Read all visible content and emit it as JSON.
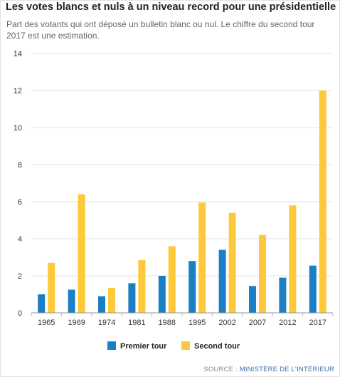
{
  "chart_data": {
    "type": "bar",
    "title": "Les votes blancs et nuls à un niveau record pour une présidentielle",
    "subtitle": "Part des votants qui ont déposé un bulletin blanc ou nul. Le chiffre du second tour 2017 est une estimation.",
    "categories": [
      "1965",
      "1969",
      "1974",
      "1981",
      "1988",
      "1995",
      "2002",
      "2007",
      "2012",
      "2017"
    ],
    "series": [
      {
        "name": "Premier tour",
        "color": "#1b7fc3",
        "values": [
          1.0,
          1.25,
          0.9,
          1.6,
          2.0,
          2.8,
          3.4,
          1.45,
          1.9,
          2.55
        ]
      },
      {
        "name": "Second tour",
        "color": "#fdc93a",
        "values": [
          2.7,
          6.4,
          1.35,
          2.85,
          3.6,
          5.95,
          5.4,
          4.2,
          5.8,
          12.0
        ]
      }
    ],
    "ylim": [
      0,
      14
    ],
    "yticks": [
      0,
      2,
      4,
      6,
      8,
      10,
      12,
      14
    ],
    "grid": true,
    "legend": "bottom",
    "source_prefix": "SOURCE : ",
    "source_name": "MINISTÈRE DE L'INTÉRIEUR"
  }
}
